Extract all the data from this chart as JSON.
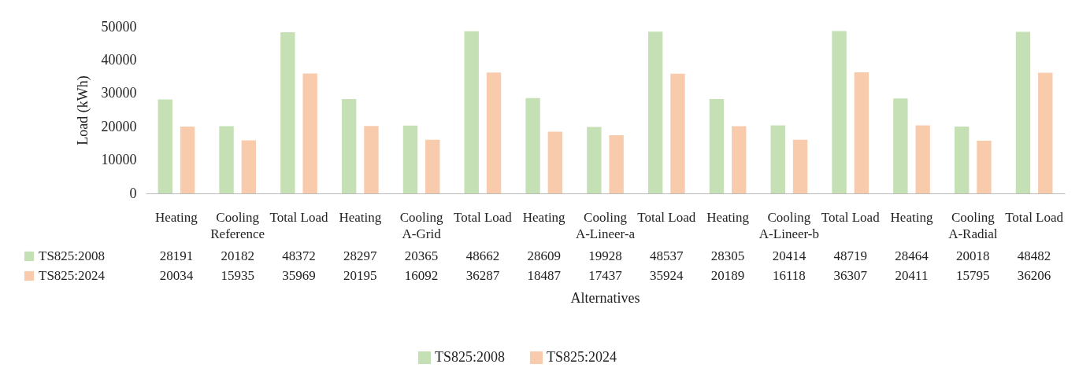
{
  "chart_data": {
    "type": "bar",
    "xlabel": "Alternatives",
    "ylabel": "Load (kWh)",
    "categories": [
      "Heating",
      "Cooling",
      "Total Load",
      "Heating",
      "Cooling",
      "Total Load",
      "Heating",
      "Cooling",
      "Total Load",
      "Heating",
      "Cooling",
      "Total Load",
      "Heating",
      "Cooling",
      "Total Load"
    ],
    "annotations": [
      "Reference",
      "A-Grid",
      "A-Lineer-a",
      "A-Lineer-b",
      "A-Radial"
    ],
    "series": [
      {
        "name": "TS825:2008",
        "color": "#c5e0b4",
        "values": [
          28191,
          20182,
          48372,
          28297,
          20365,
          48662,
          28609,
          19928,
          48537,
          28305,
          20414,
          48719,
          28464,
          20018,
          48482
        ]
      },
      {
        "name": "TS825:2024",
        "color": "#f8cbad",
        "values": [
          20034,
          15935,
          35969,
          20195,
          16092,
          36287,
          18487,
          17437,
          35924,
          20189,
          16118,
          36307,
          20411,
          15795,
          36206
        ]
      }
    ],
    "ylim": [
      0,
      50000
    ],
    "yticks": [
      0,
      10000,
      20000,
      30000,
      40000,
      50000
    ],
    "grid": false,
    "legend": "bottom",
    "data_labels": true
  }
}
